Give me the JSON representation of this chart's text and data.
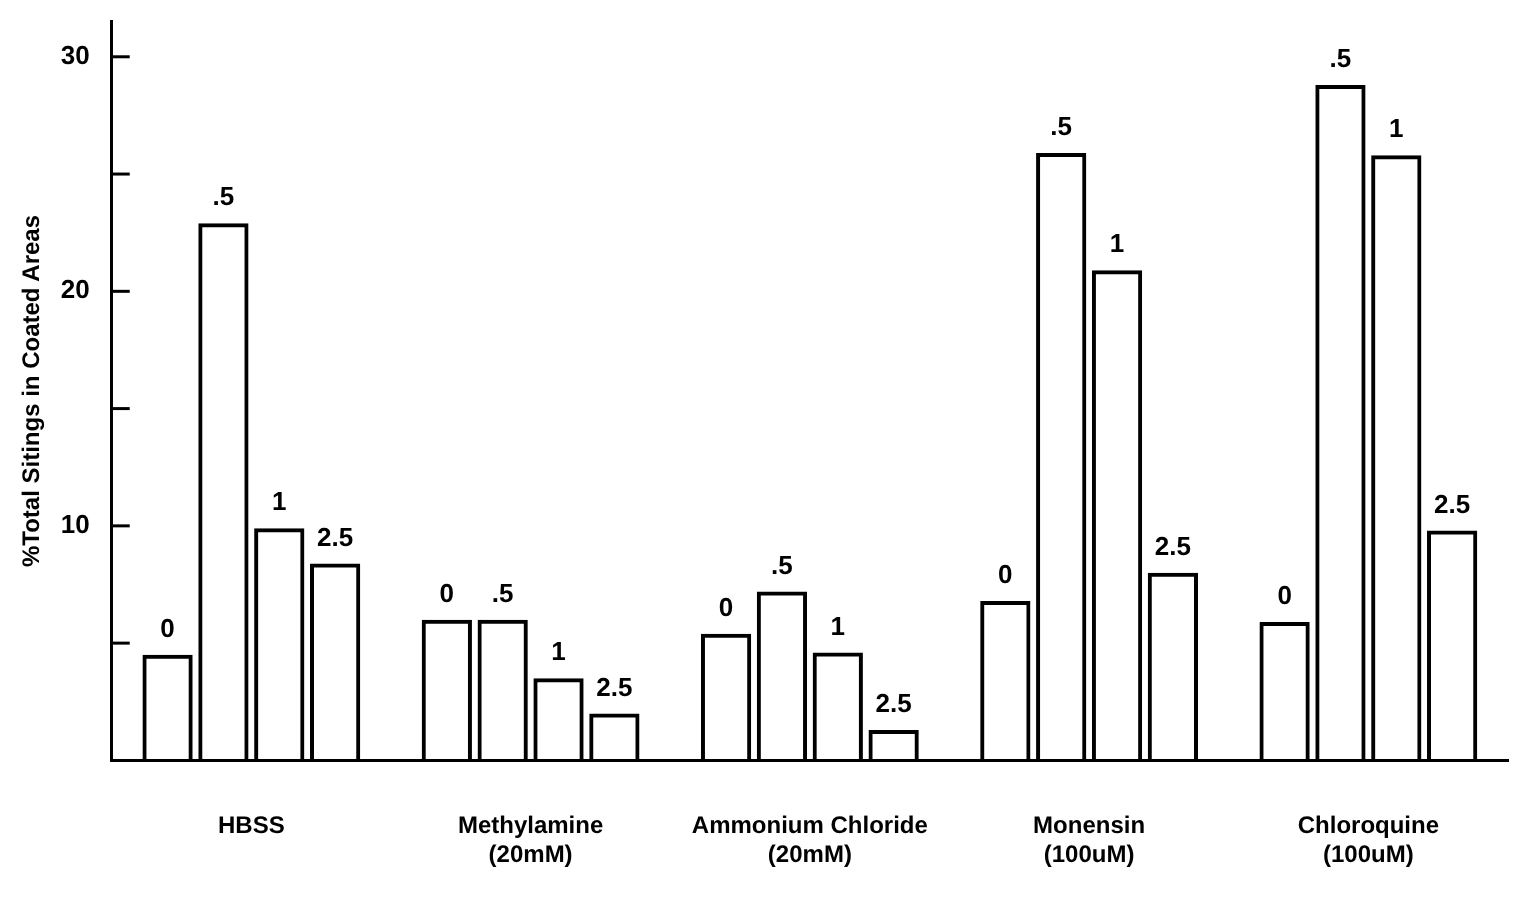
{
  "chart_data": {
    "type": "bar",
    "ylabel": "%Total Sitings in Coated Areas",
    "categories": [
      "HBSS",
      "Methylamine\n(20mM)",
      "Ammonium Chloride\n(20mM)",
      "Monensin\n(100uM)",
      "Chloroquine\n(100uM)"
    ],
    "series": [
      {
        "name": "0",
        "color": "#000000",
        "values": [
          4.5,
          6.0,
          5.4,
          6.8,
          5.9
        ]
      },
      {
        "name": ".5",
        "color": "#000000",
        "values": [
          22.9,
          6.0,
          7.2,
          25.9,
          28.8
        ]
      },
      {
        "name": "1",
        "color": "#000000",
        "values": [
          9.9,
          3.5,
          4.6,
          20.9,
          25.8
        ]
      },
      {
        "name": "2.5",
        "color": "#000000",
        "values": [
          8.4,
          2.0,
          1.3,
          8.0,
          9.8
        ]
      }
    ],
    "ylim": [
      0,
      31.5
    ],
    "yticks": [
      {
        "value": 5,
        "label": null
      },
      10,
      {
        "value": 15,
        "label": null
      },
      20,
      {
        "value": 25,
        "label": null
      },
      30
    ],
    "grid": false,
    "legend": false
  }
}
